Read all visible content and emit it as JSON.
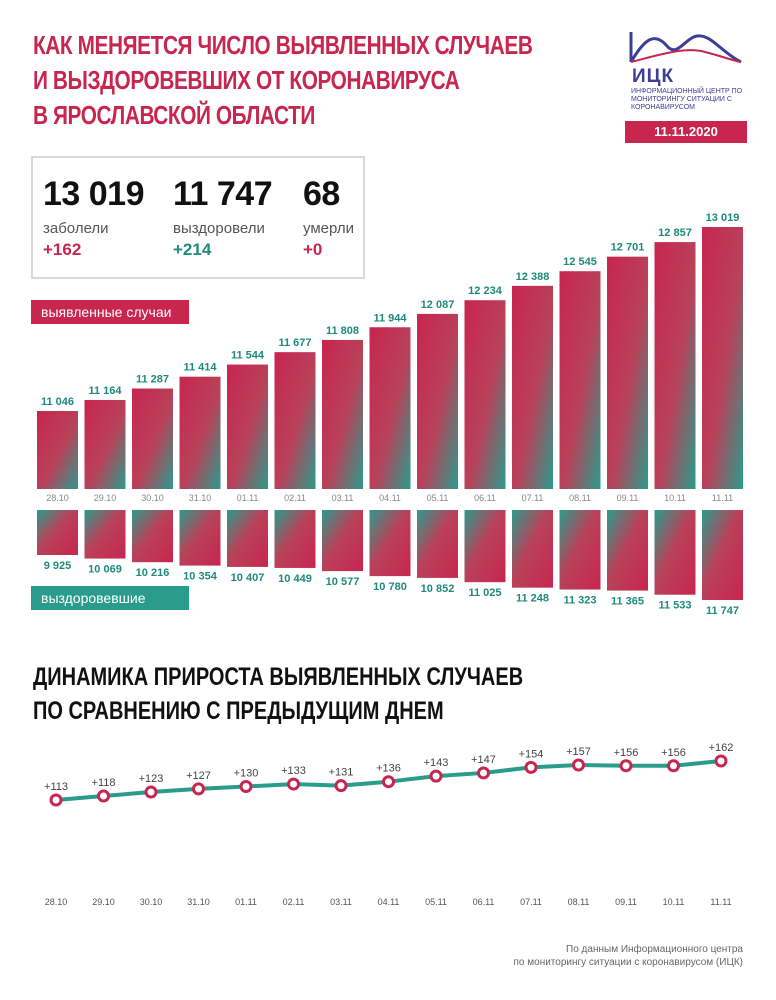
{
  "header": {
    "title_lines": [
      "Как меняется число выявленных случаев",
      "и выздоровевших от коронавируса",
      "в Ярославской области"
    ],
    "date": "11.11.2020"
  },
  "logo": {
    "abbr": "ИЦК",
    "subtitle": "Информационный центр по мониторингу ситуации с коронавирусом"
  },
  "stats": {
    "infected": {
      "value": "13 019",
      "label": "заболели",
      "delta": "+162"
    },
    "recovered": {
      "value": "11 747",
      "label": "выздоровели",
      "delta": "+214"
    },
    "died": {
      "value": "68",
      "label": "умерли",
      "delta": "+0"
    }
  },
  "legend": {
    "cases": "выявленные случаи",
    "recovered": "выздоровевшие"
  },
  "colors": {
    "accent": "#c8254f",
    "teal": "#2a9c8c",
    "line": "#2a9c8c",
    "marker": "#c8254f"
  },
  "chart_data": [
    {
      "type": "bar",
      "categories": [
        "28.10",
        "29.10",
        "30.10",
        "31.10",
        "01.11",
        "02.11",
        "03.11",
        "04.11",
        "05.11",
        "06.11",
        "07.11",
        "08.11",
        "09.11",
        "10.11",
        "11.11"
      ],
      "series": [
        {
          "name": "выявленные случаи",
          "values": [
            11046,
            11164,
            11287,
            11414,
            11544,
            11677,
            11808,
            11944,
            12087,
            12234,
            12388,
            12545,
            12701,
            12857,
            13019
          ],
          "labels": [
            "11 046",
            "11 164",
            "11 287",
            "11 414",
            "11 544",
            "11 677",
            "11 808",
            "11 944",
            "12 087",
            "12 234",
            "12 388",
            "12 545",
            "12 701",
            "12 857",
            "13 019"
          ]
        },
        {
          "name": "выздоровевшие",
          "values": [
            9925,
            10069,
            10216,
            10354,
            10407,
            10449,
            10577,
            10780,
            10852,
            11025,
            11248,
            11323,
            11365,
            11533,
            11747
          ],
          "labels": [
            "9 925",
            "10 069",
            "10 216",
            "10 354",
            "10 407",
            "10 449",
            "10 577",
            "10 780",
            "10 852",
            "11 025",
            "11 248",
            "11 323",
            "11 365",
            "11 533",
            "11 747"
          ]
        }
      ]
    },
    {
      "type": "line",
      "title": "Динамика прироста выявленных случаев по сравнению с предыдущим днем",
      "title_lines": [
        "Динамика прироста выявленных случаев",
        "по сравнению с предыдущим днем"
      ],
      "categories": [
        "28.10",
        "29.10",
        "30.10",
        "31.10",
        "01.11",
        "02.11",
        "03.11",
        "04.11",
        "05.11",
        "06.11",
        "07.11",
        "08.11",
        "09.11",
        "10.11",
        "11.11"
      ],
      "values": [
        113,
        118,
        123,
        127,
        130,
        133,
        131,
        136,
        143,
        147,
        154,
        157,
        156,
        156,
        162
      ],
      "labels": [
        "+113",
        "+118",
        "+123",
        "+127",
        "+130",
        "+133",
        "+131",
        "+136",
        "+143",
        "+147",
        "+154",
        "+157",
        "+156",
        "+156",
        "+162"
      ]
    }
  ],
  "footer": {
    "line1": "По данным Информационного центра",
    "line2": "по мониторингу ситуации с коронавирусом (ИЦК)"
  }
}
